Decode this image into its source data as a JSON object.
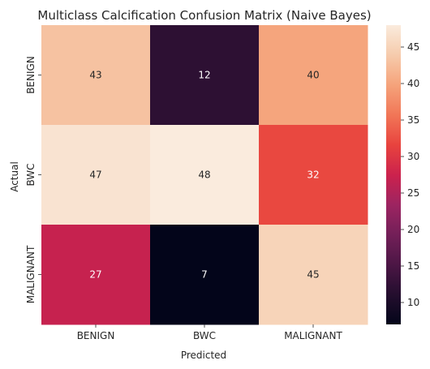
{
  "chart_data": {
    "type": "heatmap",
    "title": "Multiclass Calcification Confusion Matrix (Naive Bayes)",
    "xlabel": "Predicted",
    "ylabel": "Actual",
    "x_categories": [
      "BENIGN",
      "BWC",
      "MALIGNANT"
    ],
    "y_categories": [
      "BENIGN",
      "BWC",
      "MALIGNANT"
    ],
    "values": [
      [
        43,
        12,
        40
      ],
      [
        47,
        48,
        32
      ],
      [
        27,
        7,
        45
      ]
    ],
    "colorbar": {
      "min": 7,
      "max": 48,
      "ticks": [
        10,
        15,
        20,
        25,
        30,
        35,
        40,
        45
      ]
    },
    "colormap": "rocket"
  }
}
